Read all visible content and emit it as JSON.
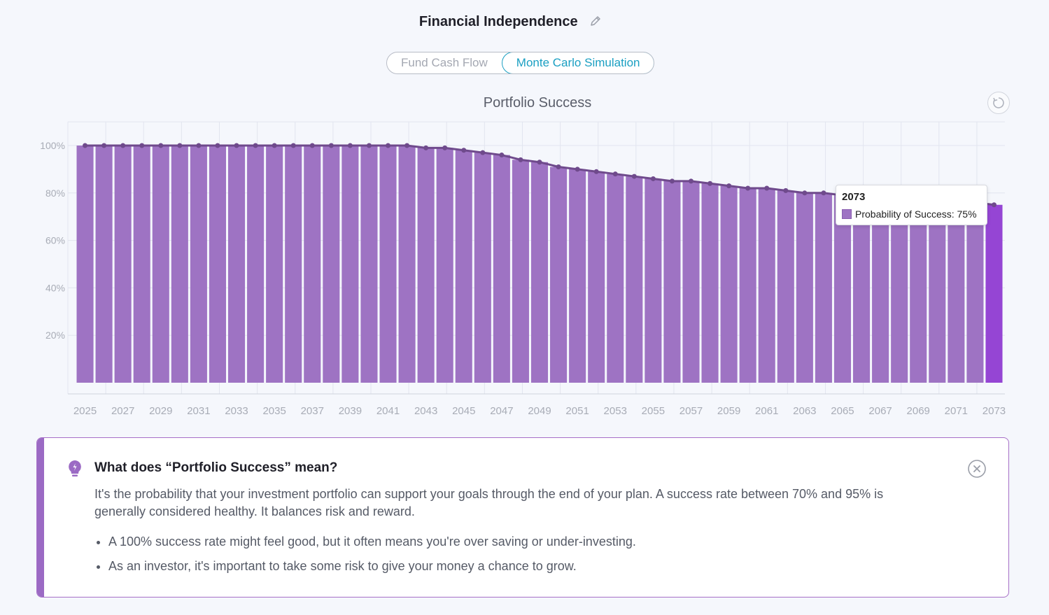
{
  "header": {
    "title": "Financial Independence",
    "edit_icon": "pencil-icon"
  },
  "tabs": [
    {
      "label": "Fund Cash Flow",
      "active": false
    },
    {
      "label": "Monte Carlo Simulation",
      "active": true
    }
  ],
  "chart_header": {
    "title": "Portfolio Success",
    "reset_icon": "reset-icon"
  },
  "chart_data": {
    "type": "bar",
    "series": [
      {
        "name": "Probability of Success",
        "values": [
          100,
          100,
          100,
          100,
          100,
          100,
          100,
          100,
          100,
          100,
          100,
          100,
          100,
          100,
          100,
          100,
          100,
          100,
          99,
          99,
          98,
          97,
          96,
          94,
          93,
          91,
          90,
          89,
          88,
          87,
          86,
          85,
          85,
          84,
          83,
          82,
          82,
          81,
          80,
          80,
          79,
          78,
          78,
          77,
          77,
          76,
          76,
          76,
          75
        ]
      }
    ],
    "x": [
      2025,
      2026,
      2027,
      2028,
      2029,
      2030,
      2031,
      2032,
      2033,
      2034,
      2035,
      2036,
      2037,
      2038,
      2039,
      2040,
      2041,
      2042,
      2043,
      2044,
      2045,
      2046,
      2047,
      2048,
      2049,
      2050,
      2051,
      2052,
      2053,
      2054,
      2055,
      2056,
      2057,
      2058,
      2059,
      2060,
      2061,
      2062,
      2063,
      2064,
      2065,
      2066,
      2067,
      2068,
      2069,
      2070,
      2071,
      2072,
      2073
    ],
    "x_tick_labels": [
      "2025",
      "2027",
      "2029",
      "2031",
      "2033",
      "2035",
      "2037",
      "2039",
      "2041",
      "2043",
      "2045",
      "2047",
      "2049",
      "2051",
      "2053",
      "2055",
      "2057",
      "2059",
      "2061",
      "2063",
      "2065",
      "2067",
      "2069",
      "2071",
      "2073"
    ],
    "y_tick_labels": [
      "20%",
      "40%",
      "60%",
      "80%",
      "100%"
    ],
    "y_ticks": [
      20,
      40,
      60,
      80,
      100
    ],
    "ylim": [
      0,
      110
    ],
    "overlay_line": true,
    "grid": true,
    "highlighted_index": 48,
    "colors": {
      "bar": "#9e73c3",
      "bar_highlight": "#9545d4",
      "line": "#6f4a8c",
      "grid": "#e2e5ef"
    }
  },
  "tooltip": {
    "year": "2073",
    "label": "Probability of Success: 75%"
  },
  "info": {
    "icon": "lightbulb-icon",
    "title": "What does “Portfolio Success” mean?",
    "body": "It's the probability that your investment portfolio can support your goals through the end of your plan. A success rate between 70% and 95% is generally considered healthy. It balances risk and reward.",
    "bullets": [
      "A 100% success rate might feel good, but it often means you're over saving or under-investing.",
      "As an investor, it's important to take some risk to give your money a chance to grow."
    ],
    "close_icon": "close-icon"
  }
}
